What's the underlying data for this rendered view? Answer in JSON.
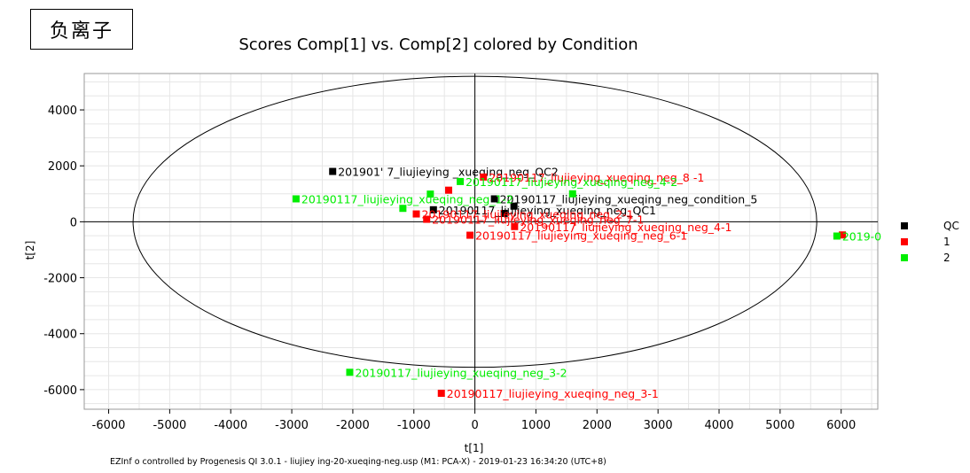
{
  "badge": {
    "label": "负离子"
  },
  "footer": {
    "text": "EZInf o controlled by  Progenesis  QI  3.0.1 - liujiey ing-20-xueqing-neg.usp (M1:  PCA-X) - 2019-01-23 16:34:20 (UTC+8)"
  },
  "chart_data": {
    "type": "scatter",
    "title": "Scores Comp[1] vs. Comp[2] colored by Condition",
    "xlabel": "t[1]",
    "ylabel": "t[2]",
    "xlim": [
      -6400,
      6600
    ],
    "ylim": [
      -6700,
      5300
    ],
    "xticks": [
      -6000,
      -5000,
      -4000,
      -3000,
      -2000,
      -1000,
      0,
      1000,
      2000,
      3000,
      4000,
      5000,
      6000
    ],
    "yticks": [
      -6000,
      -4000,
      -2000,
      0,
      2000,
      4000
    ],
    "grid": true,
    "legend_position": "right",
    "ellipse": {
      "center": [
        0,
        0
      ],
      "rx": 5600,
      "ry": 5200
    },
    "series": [
      {
        "name": "QC",
        "color": "#000000",
        "points": [
          {
            "x": -2330,
            "y": 1800,
            "label": "201901' 7_liujieying _xueqing_neg_QC2"
          },
          {
            "x": -680,
            "y": 430,
            "label": "20190117_liujieying_xueqing_neg_QC1"
          },
          {
            "x": 320,
            "y": 820,
            "label": "20190117_liujieying_xueqing_neg_condition_5"
          },
          {
            "x": 640,
            "y": 560,
            "label": ""
          },
          {
            "x": 480,
            "y": 300,
            "label": ""
          }
        ]
      },
      {
        "name": "1",
        "color": "#ff0000",
        "points": [
          {
            "x": 140,
            "y": 1600,
            "label": "20190117_liujieying_xueqing_neg_8 -1"
          },
          {
            "x": -430,
            "y": 1130,
            "label": ""
          },
          {
            "x": -960,
            "y": 280,
            "label": "20190117_liujieying_xueqing_neg_2-1"
          },
          {
            "x": -790,
            "y": 90,
            "label": "20190117_liujieying_xueqing_neg_7-1"
          },
          {
            "x": -80,
            "y": -480,
            "label": "20190117_liujieying_xueqing_neg_6-1"
          },
          {
            "x": 650,
            "y": -170,
            "label": "20190117_liujieying_xueqing_neg_4-1"
          },
          {
            "x": 6020,
            "y": -470,
            "label": ""
          },
          {
            "x": -550,
            "y": -6130,
            "label": "20190117_liujieying_xueqing_neg_3-1"
          }
        ]
      },
      {
        "name": "2",
        "color": "#00ee00",
        "points": [
          {
            "x": -2930,
            "y": 820,
            "label": "20190117_liujieying_xueqing_neg_1-2"
          },
          {
            "x": -1180,
            "y": 480,
            "label": ""
          },
          {
            "x": -730,
            "y": 990,
            "label": ""
          },
          {
            "x": -240,
            "y": 1440,
            "label": "20190117_liujieying_xueqing_neg_4-2"
          },
          {
            "x": 1600,
            "y": 1000,
            "label": ""
          },
          {
            "x": 5930,
            "y": -510,
            "label": "2019-0"
          },
          {
            "x": -2050,
            "y": -5380,
            "label": "20190117_liujieying_xueqing_neg_3-2"
          }
        ]
      }
    ]
  }
}
